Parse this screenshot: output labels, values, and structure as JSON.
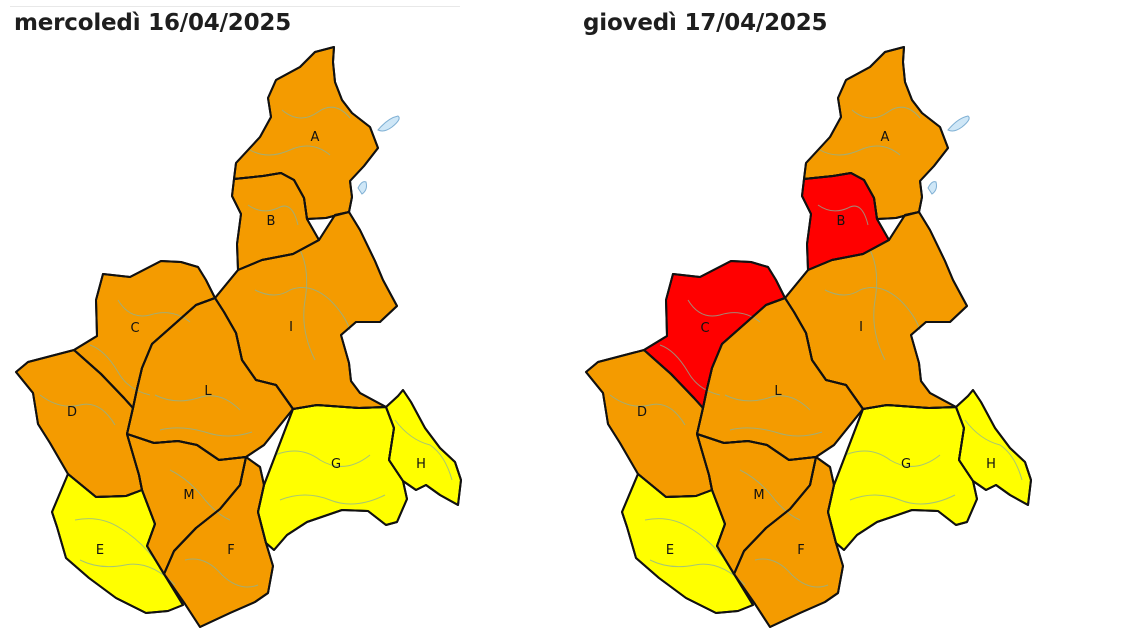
{
  "colors": {
    "orange": "#f49b00",
    "yellow": "#ffff00",
    "red": "#ff0000",
    "border": "#111111",
    "river": "#88b39b"
  },
  "maps": [
    {
      "title": "mercoledì 16/04/2025",
      "zones": {
        "A": "orange",
        "B": "orange",
        "C": "orange",
        "D": "orange",
        "E": "yellow",
        "F": "orange",
        "G": "yellow",
        "H": "yellow",
        "I": "orange",
        "L": "orange",
        "M": "orange"
      }
    },
    {
      "title": "giovedì 17/04/2025",
      "zones": {
        "A": "orange",
        "B": "red",
        "C": "red",
        "D": "orange",
        "E": "yellow",
        "F": "orange",
        "G": "yellow",
        "H": "yellow",
        "I": "orange",
        "L": "orange",
        "M": "orange"
      }
    }
  ]
}
